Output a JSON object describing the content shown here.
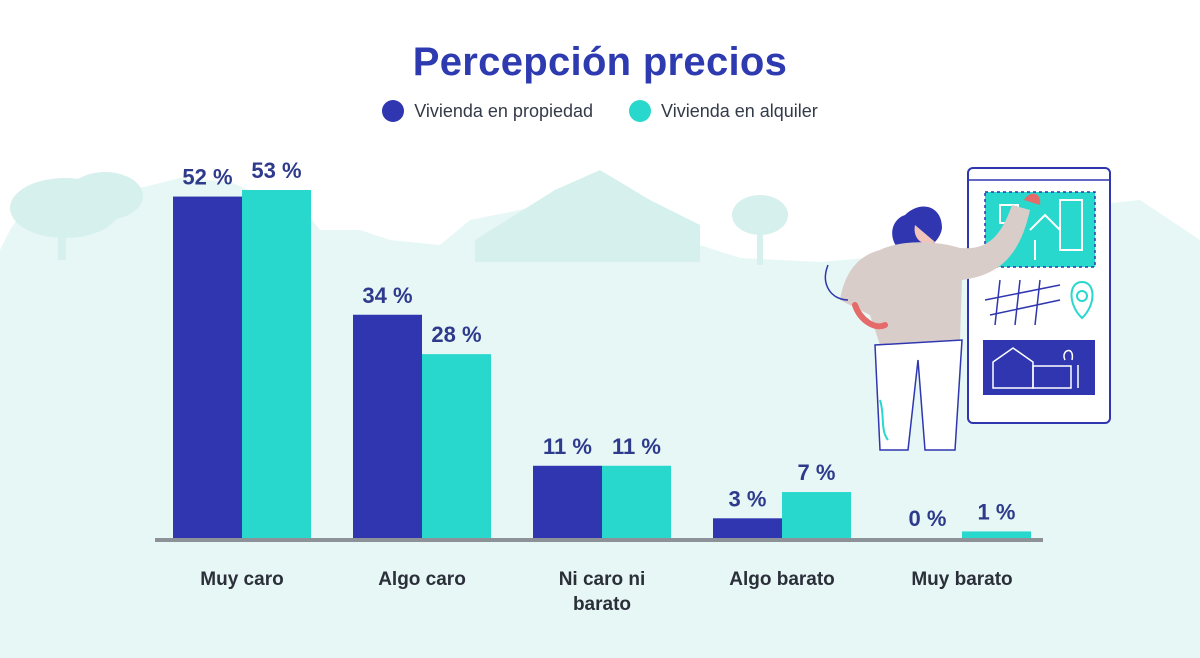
{
  "chart_data": {
    "type": "bar",
    "title": "Percepción precios",
    "categories": [
      "Muy caro",
      "Algo caro",
      "Ni caro ni barato",
      "Algo barato",
      "Muy barato"
    ],
    "category_lines": [
      [
        "Muy caro"
      ],
      [
        "Algo caro"
      ],
      [
        "Ni caro ni",
        "barato"
      ],
      [
        "Algo barato"
      ],
      [
        "Muy barato"
      ]
    ],
    "series": [
      {
        "name": "Vivienda en propiedad",
        "values": [
          52,
          34,
          11,
          3,
          0
        ],
        "labels": [
          "52 %",
          "34 %",
          "11 %",
          "3 %",
          "0 %"
        ],
        "color": "#2f36b0"
      },
      {
        "name": "Vivienda en alquiler",
        "values": [
          53,
          28,
          11,
          7,
          1
        ],
        "labels": [
          "53 %",
          "28 %",
          "11 %",
          "7 %",
          "1 %"
        ],
        "color": "#28d8cc"
      }
    ],
    "ylim": [
      0,
      53
    ],
    "grid": false,
    "legend_position": "top-center"
  },
  "colors": {
    "title": "#2e3bb0",
    "label": "#2e3a8c",
    "baseline": "#8d9299",
    "background_scene": "#e6f7f5",
    "figure_sweater": "#d9cdca",
    "figure_hair": "#2f36b0"
  },
  "illustration": {
    "icons": [
      "tree-silhouette-icon",
      "house-silhouette-icon",
      "woman-presenting-icon",
      "city-map-icon",
      "location-pin-icon",
      "house-card-icon"
    ]
  }
}
